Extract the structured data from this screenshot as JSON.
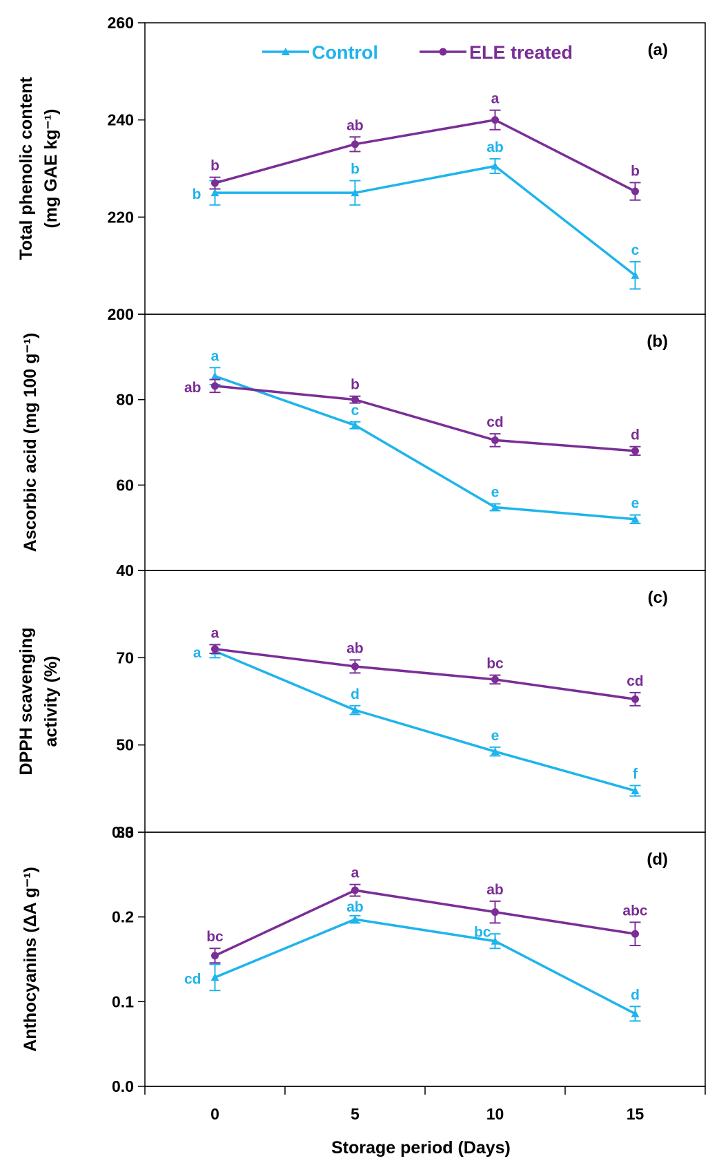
{
  "chart_data": {
    "type": "line",
    "colors": {
      "control": "#1EB4EC",
      "ele": "#7A2E96"
    },
    "legend": {
      "placement": "top",
      "entries": [
        "Control",
        "ELE treated"
      ]
    },
    "x": [
      0,
      5,
      10,
      15
    ],
    "xticks": [
      "0",
      "5",
      "10",
      "15"
    ],
    "xlabel": "Storage period (Days)",
    "xlim": [
      -2.5,
      17.5
    ],
    "panels": [
      {
        "panel_label": "(a)",
        "ylabel_lines": [
          "Total phenolic content",
          "(mg GAE kg⁻¹)"
        ],
        "ylim": [
          200,
          260
        ],
        "yticks": [
          "200",
          "220",
          "240",
          "260"
        ],
        "series": [
          {
            "name": "Control",
            "values": [
              225,
              225,
              230.5,
              208
            ],
            "errors": [
              2.5,
              2.5,
              1.5,
              2.8
            ],
            "letters": [
              "b",
              "b",
              "ab",
              "c"
            ]
          },
          {
            "name": "ELE treated",
            "values": [
              227,
              235,
              240,
              225.3
            ],
            "errors": [
              1.2,
              1.5,
              2.0,
              1.8
            ],
            "letters": [
              "b",
              "ab",
              "a",
              "b"
            ]
          }
        ]
      },
      {
        "panel_label": "(b)",
        "ylabel_lines": [
          "Ascorbic acid (mg 100 g⁻¹)"
        ],
        "ylim": [
          40,
          100
        ],
        "yticks": [
          "40",
          "60",
          "80",
          ""
        ],
        "series": [
          {
            "name": "Control",
            "values": [
              85.5,
              74,
              54.8,
              52
            ],
            "errors": [
              2.0,
              0.8,
              0.8,
              1.0
            ],
            "letters": [
              "a",
              "c",
              "e",
              "e"
            ]
          },
          {
            "name": "ELE treated",
            "values": [
              83.2,
              80,
              70.5,
              68
            ],
            "errors": [
              1.5,
              0.8,
              1.5,
              1.0
            ],
            "letters": [
              "ab",
              "b",
              "cd",
              "d"
            ]
          }
        ]
      },
      {
        "panel_label": "(c)",
        "ylabel_lines": [
          "DPPH scavenging",
          "activity (%)"
        ],
        "ylim": [
          30,
          90
        ],
        "yticks": [
          "30",
          "50",
          "70",
          ""
        ],
        "series": [
          {
            "name": "Control",
            "values": [
              71.5,
              58,
              48.5,
              39.5
            ],
            "errors": [
              1.5,
              1.0,
              1.0,
              1.2
            ],
            "letters": [
              "a",
              "d",
              "e",
              "f"
            ]
          },
          {
            "name": "ELE treated",
            "values": [
              72,
              68,
              65,
              60.5
            ],
            "errors": [
              1.0,
              1.5,
              1.0,
              1.5
            ],
            "letters": [
              "a",
              "ab",
              "bc",
              "cd"
            ]
          }
        ]
      },
      {
        "panel_label": "(d)",
        "ylabel_lines": [
          "Anthocyanins (ΔA g⁻¹)"
        ],
        "ylim": [
          0,
          0.35
        ],
        "yticks": [
          "0.0",
          "0.1",
          "0.2",
          "0.3"
        ],
        "series": [
          {
            "name": "Control",
            "values": [
              0.15,
              0.23,
              0.2,
              0.1
            ],
            "errors": [
              0.018,
              0.005,
              0.01,
              0.01
            ],
            "letters": [
              "cd",
              "ab",
              "bc",
              "d"
            ]
          },
          {
            "name": "ELE treated",
            "values": [
              0.18,
              0.27,
              0.24,
              0.21
            ],
            "errors": [
              0.01,
              0.008,
              0.015,
              0.016
            ],
            "letters": [
              "bc",
              "a",
              "ab",
              "abc"
            ]
          }
        ]
      }
    ]
  }
}
